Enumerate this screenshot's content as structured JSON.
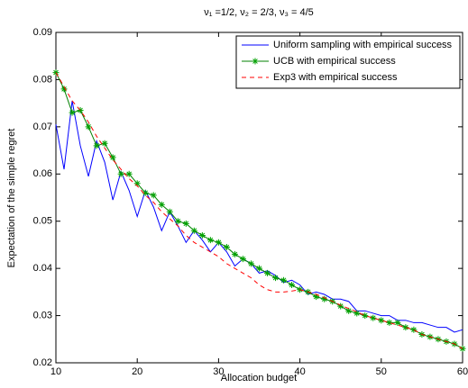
{
  "chart_data": {
    "type": "line",
    "title": "ν₁ =1/2, ν₂ = 2/3, ν₃ = 4/5",
    "x_label": "Allocation budget",
    "y_label": "Expectation of the simple regret",
    "x": [
      10,
      11,
      12,
      13,
      14,
      15,
      16,
      17,
      18,
      19,
      20,
      21,
      22,
      23,
      24,
      25,
      26,
      27,
      28,
      29,
      30,
      31,
      32,
      33,
      34,
      35,
      36,
      37,
      38,
      39,
      40,
      41,
      42,
      43,
      44,
      45,
      46,
      47,
      48,
      49,
      50,
      51,
      52,
      53,
      54,
      55,
      56,
      57,
      58,
      59,
      60
    ],
    "series": [
      {
        "name": "Uniform sampling with empirical success",
        "color": "#0000ff",
        "style": "solid",
        "values": [
          0.0705,
          0.061,
          0.0755,
          0.066,
          0.0595,
          0.067,
          0.0625,
          0.0545,
          0.0605,
          0.0565,
          0.051,
          0.0565,
          0.053,
          0.048,
          0.052,
          0.049,
          0.0455,
          0.048,
          0.046,
          0.0435,
          0.0455,
          0.0435,
          0.0405,
          0.042,
          0.041,
          0.039,
          0.0395,
          0.0385,
          0.037,
          0.0375,
          0.0365,
          0.0345,
          0.035,
          0.0345,
          0.0335,
          0.0335,
          0.033,
          0.031,
          0.031,
          0.0305,
          0.03,
          0.03,
          0.029,
          0.029,
          0.0285,
          0.0285,
          0.028,
          0.0275,
          0.0275,
          0.0265,
          0.027
        ]
      },
      {
        "name": "UCB with empirical success",
        "color": "#008000",
        "style": "solid",
        "marker": "star",
        "marker_color": "#00a000",
        "values": [
          0.0815,
          0.078,
          0.073,
          0.0735,
          0.07,
          0.066,
          0.0665,
          0.0635,
          0.06,
          0.06,
          0.058,
          0.056,
          0.0555,
          0.0535,
          0.052,
          0.05,
          0.0495,
          0.048,
          0.047,
          0.046,
          0.0455,
          0.0445,
          0.043,
          0.042,
          0.041,
          0.04,
          0.039,
          0.038,
          0.0375,
          0.0365,
          0.0355,
          0.035,
          0.034,
          0.0335,
          0.033,
          0.032,
          0.031,
          0.0305,
          0.03,
          0.0295,
          0.029,
          0.0285,
          0.0285,
          0.0275,
          0.027,
          0.026,
          0.0255,
          0.025,
          0.0245,
          0.024,
          0.023
        ]
      },
      {
        "name": "Exp3 with empirical success",
        "color": "#ff0000",
        "style": "dashed",
        "values": [
          0.0815,
          0.0785,
          0.0755,
          0.0735,
          0.071,
          0.068,
          0.0655,
          0.063,
          0.061,
          0.059,
          0.0575,
          0.0555,
          0.054,
          0.052,
          0.0505,
          0.049,
          0.047,
          0.0455,
          0.0445,
          0.0435,
          0.0425,
          0.041,
          0.04,
          0.039,
          0.038,
          0.0365,
          0.0355,
          0.035,
          0.035,
          0.0352,
          0.0355,
          0.035,
          0.0345,
          0.0338,
          0.033,
          0.0322,
          0.0315,
          0.0308,
          0.03,
          0.0295,
          0.029,
          0.0285,
          0.028,
          0.0275,
          0.027,
          0.026,
          0.0255,
          0.025,
          0.0245,
          0.024,
          0.023
        ]
      }
    ],
    "xlim": [
      10,
      60
    ],
    "xticks": [
      10,
      20,
      30,
      40,
      50,
      60
    ],
    "ylim": [
      0.02,
      0.09
    ],
    "yticks": [
      0.02,
      0.03,
      0.04,
      0.05,
      0.06,
      0.07,
      0.08,
      0.09
    ],
    "grid": false,
    "legend": "upper right"
  }
}
